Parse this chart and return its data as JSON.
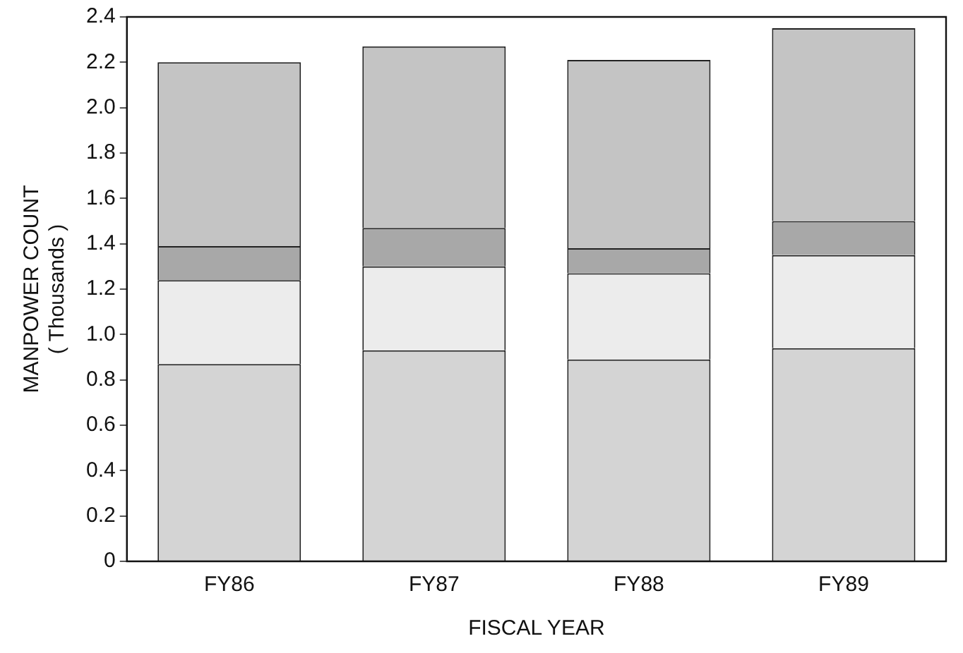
{
  "chart_data": {
    "type": "bar",
    "stacked": true,
    "xlabel": "FISCAL YEAR",
    "ylabel": "MANPOWER COUNT\n( Thousands )",
    "categories": [
      "FY86",
      "FY87",
      "FY88",
      "FY89"
    ],
    "series": [
      {
        "color": "#d4d4d4",
        "values": [
          0.87,
          0.93,
          0.89,
          0.94
        ]
      },
      {
        "color": "#ececec",
        "values": [
          0.37,
          0.37,
          0.38,
          0.41
        ]
      },
      {
        "color": "#a8a8a8",
        "values": [
          0.15,
          0.17,
          0.11,
          0.15
        ]
      },
      {
        "color": "#c4c4c4",
        "values": [
          0.81,
          0.8,
          0.83,
          0.85
        ]
      }
    ],
    "ylim": [
      0,
      2.4
    ],
    "yticks": [
      0,
      0.2,
      0.4,
      0.6,
      0.8,
      {
        "value": 1,
        "label": "1.0"
      },
      1.2,
      1.4,
      1.6,
      1.8,
      {
        "value": 2,
        "label": "2.0"
      },
      2.2,
      2.4
    ],
    "grid": false,
    "legend": false
  }
}
